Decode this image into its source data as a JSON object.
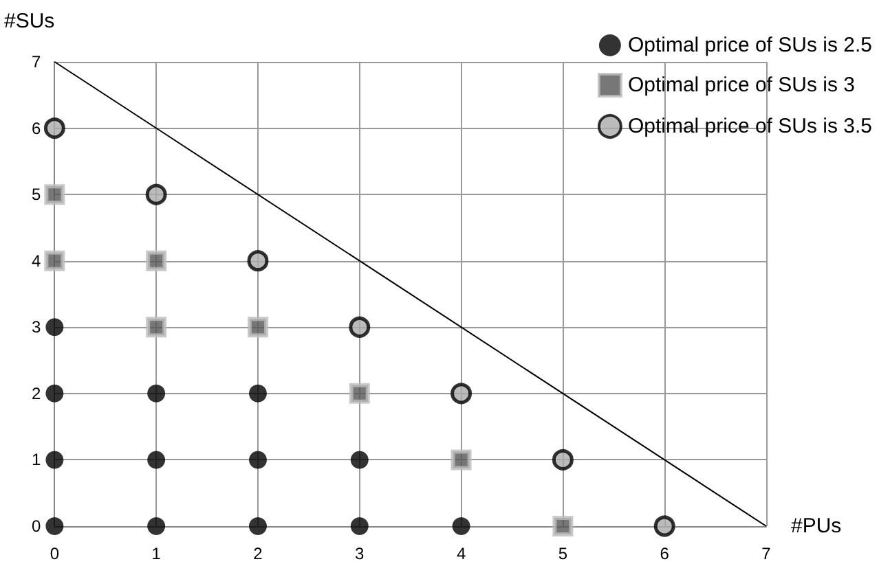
{
  "chart_data": {
    "type": "scatter",
    "xlabel": "#PUs",
    "ylabel": "#SUs",
    "xlim": [
      0,
      7
    ],
    "ylim": [
      0,
      7
    ],
    "xticks": [
      0,
      1,
      2,
      3,
      4,
      5,
      6,
      7
    ],
    "yticks": [
      0,
      1,
      2,
      3,
      4,
      5,
      6,
      7
    ],
    "grid": true,
    "legend": "top right",
    "series": [
      {
        "name": "Optimal price of SUs is 2.5",
        "color": "#000000",
        "marker": "circle",
        "x": [
          0,
          0,
          0,
          0,
          1,
          1,
          1,
          2,
          2,
          2,
          3,
          3,
          4
        ],
        "values": [
          0,
          1,
          2,
          3,
          0,
          1,
          2,
          0,
          1,
          2,
          0,
          1,
          0
        ]
      },
      {
        "name": "Optimal price of SUs is 3",
        "color": "#555555",
        "marker": "square",
        "x": [
          0,
          0,
          1,
          1,
          2,
          3,
          4,
          5
        ],
        "values": [
          4,
          5,
          3,
          4,
          3,
          2,
          1,
          0
        ]
      },
      {
        "name": "Optimal price of SUs is 3.5",
        "color": "#aaaaaa",
        "marker": "circle",
        "x": [
          0,
          1,
          2,
          3,
          4,
          5,
          6
        ],
        "values": [
          6,
          5,
          4,
          3,
          2,
          1,
          0
        ]
      },
      {
        "type": "line",
        "color": "#000000",
        "marker": "none",
        "x": [
          0,
          7
        ],
        "values": [
          7,
          0
        ]
      }
    ]
  }
}
